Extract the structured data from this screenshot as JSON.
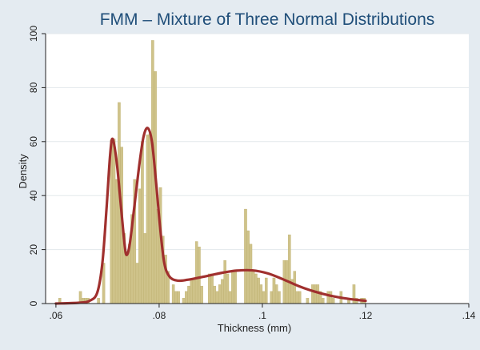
{
  "chart_data": {
    "type": "bar",
    "title": "FMM – Mixture of Three Normal Distributions",
    "xlabel": "Thickness (mm)",
    "ylabel": "Density",
    "xlim": [
      0.058,
      0.14
    ],
    "ylim": [
      0,
      100
    ],
    "xticks": [
      0.06,
      0.08,
      0.1,
      0.12,
      0.14
    ],
    "xtick_labels": [
      ".06",
      ".08",
      ".1",
      ".12",
      ".14"
    ],
    "yticks": [
      0,
      20,
      40,
      60,
      80,
      100
    ],
    "ytick_labels": [
      "0",
      "20",
      "40",
      "60",
      "80",
      "100"
    ],
    "grid": "horizontal",
    "bin_width": 0.0005,
    "series": [
      {
        "kind": "histogram",
        "color": "#cfc38a",
        "bins": [
          [
            0.0605,
            2
          ],
          [
            0.0645,
            4.5
          ],
          [
            0.065,
            2
          ],
          [
            0.0655,
            2
          ],
          [
            0.066,
            2
          ],
          [
            0.068,
            2
          ],
          [
            0.069,
            15
          ],
          [
            0.0705,
            60.5
          ],
          [
            0.071,
            61
          ],
          [
            0.0715,
            46
          ],
          [
            0.072,
            74.5
          ],
          [
            0.0725,
            58
          ],
          [
            0.073,
            26
          ],
          [
            0.0735,
            18
          ],
          [
            0.074,
            22
          ],
          [
            0.0745,
            33
          ],
          [
            0.075,
            46
          ],
          [
            0.0755,
            15
          ],
          [
            0.076,
            42.5
          ],
          [
            0.0765,
            60
          ],
          [
            0.077,
            26
          ],
          [
            0.0775,
            62.5
          ],
          [
            0.078,
            63
          ],
          [
            0.0785,
            97.5
          ],
          [
            0.079,
            86
          ],
          [
            0.0795,
            35
          ],
          [
            0.08,
            43
          ],
          [
            0.0805,
            25
          ],
          [
            0.081,
            18
          ],
          [
            0.0815,
            12
          ],
          [
            0.0825,
            7
          ],
          [
            0.083,
            4.5
          ],
          [
            0.0835,
            4.5
          ],
          [
            0.0845,
            2
          ],
          [
            0.085,
            4.5
          ],
          [
            0.0855,
            6.5
          ],
          [
            0.086,
            9
          ],
          [
            0.0865,
            9
          ],
          [
            0.087,
            23
          ],
          [
            0.0875,
            21
          ],
          [
            0.088,
            6.5
          ],
          [
            0.0895,
            11
          ],
          [
            0.09,
            11
          ],
          [
            0.0905,
            6.5
          ],
          [
            0.091,
            4.5
          ],
          [
            0.0915,
            7
          ],
          [
            0.092,
            9
          ],
          [
            0.0925,
            16
          ],
          [
            0.093,
            11
          ],
          [
            0.0935,
            4.5
          ],
          [
            0.094,
            12
          ],
          [
            0.0945,
            12
          ],
          [
            0.0965,
            35
          ],
          [
            0.097,
            27
          ],
          [
            0.0975,
            22
          ],
          [
            0.098,
            12
          ],
          [
            0.0985,
            11
          ],
          [
            0.099,
            9.5
          ],
          [
            0.0995,
            7
          ],
          [
            0.1,
            4.5
          ],
          [
            0.1005,
            9.5
          ],
          [
            0.1015,
            4.5
          ],
          [
            0.102,
            9.5
          ],
          [
            0.1025,
            7
          ],
          [
            0.103,
            4.5
          ],
          [
            0.104,
            16
          ],
          [
            0.1045,
            16
          ],
          [
            0.105,
            25.5
          ],
          [
            0.1055,
            9
          ],
          [
            0.106,
            12
          ],
          [
            0.1065,
            4.5
          ],
          [
            0.107,
            4.5
          ],
          [
            0.1085,
            2
          ],
          [
            0.1095,
            7
          ],
          [
            0.11,
            7
          ],
          [
            0.1105,
            7
          ],
          [
            0.111,
            4.5
          ],
          [
            0.1115,
            2
          ],
          [
            0.1125,
            4.5
          ],
          [
            0.113,
            4.5
          ],
          [
            0.1135,
            2
          ],
          [
            0.115,
            4.5
          ],
          [
            0.1165,
            2
          ],
          [
            0.1175,
            7
          ],
          [
            0.118,
            2
          ],
          [
            0.119,
            2
          ],
          [
            0.1195,
            2
          ]
        ]
      },
      {
        "kind": "density",
        "color": "#a0302e",
        "points": [
          [
            0.06,
            0
          ],
          [
            0.0645,
            0.3
          ],
          [
            0.0665,
            1
          ],
          [
            0.068,
            4
          ],
          [
            0.069,
            15
          ],
          [
            0.0698,
            35
          ],
          [
            0.0705,
            55
          ],
          [
            0.071,
            61
          ],
          [
            0.0718,
            52
          ],
          [
            0.0726,
            36
          ],
          [
            0.0733,
            22
          ],
          [
            0.0737,
            18
          ],
          [
            0.0743,
            22
          ],
          [
            0.0752,
            36
          ],
          [
            0.0762,
            52
          ],
          [
            0.077,
            62
          ],
          [
            0.0778,
            65
          ],
          [
            0.0786,
            60
          ],
          [
            0.0794,
            45
          ],
          [
            0.0802,
            28
          ],
          [
            0.081,
            15
          ],
          [
            0.082,
            10
          ],
          [
            0.0835,
            8.5
          ],
          [
            0.0855,
            8.8
          ],
          [
            0.0875,
            9.5
          ],
          [
            0.09,
            10.5
          ],
          [
            0.0925,
            11.5
          ],
          [
            0.095,
            12.2
          ],
          [
            0.098,
            12.3
          ],
          [
            0.101,
            11.2
          ],
          [
            0.104,
            9
          ],
          [
            0.107,
            6.5
          ],
          [
            0.11,
            4.5
          ],
          [
            0.113,
            3
          ],
          [
            0.1165,
            1.8
          ],
          [
            0.12,
            1
          ]
        ]
      }
    ]
  }
}
